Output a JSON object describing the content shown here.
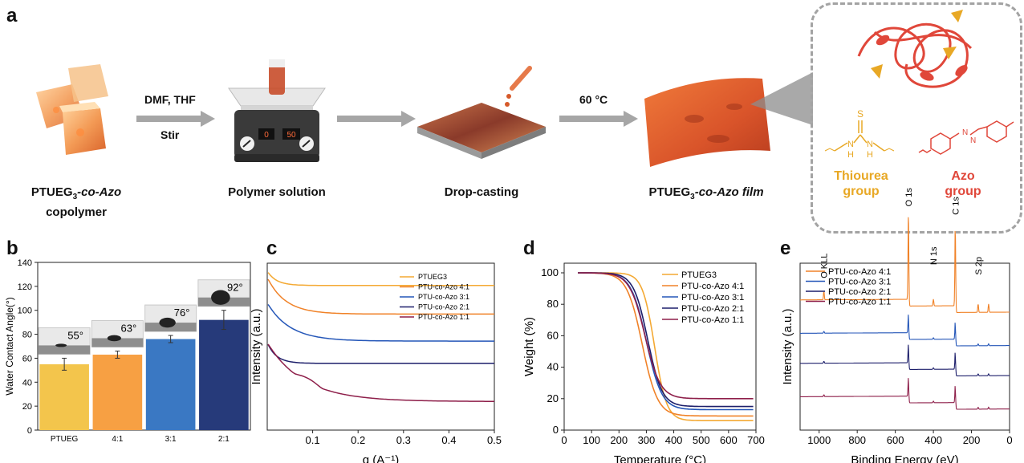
{
  "panel_a": {
    "letter": "a",
    "copolymer_label_line1": "PTUEG",
    "copolymer_label_sub": "3",
    "copolymer_label_line1b": "-co-Azo",
    "copolymer_label_line2": "copolymer",
    "step1_top": "DMF, THF",
    "step1_bottom": "Stir",
    "solution_label": "Polymer solution",
    "stirrer_display_left": "0",
    "stirrer_display_right": "50",
    "dropcast_label": "Drop-casting",
    "step3_top": "60 °C",
    "film_label_pre": "PTUEG",
    "film_label_sub": "3",
    "film_label_post": "-co-Azo film",
    "thiourea_label_line1": "Thiourea",
    "thiourea_label_line2": "group",
    "azo_label_line1": "Azo",
    "azo_label_line2": "group",
    "atom_S": "S",
    "atom_H": "H",
    "atom_N": "N",
    "colors": {
      "arrow": "#a6a6a6",
      "thiourea": "#e8a825",
      "azo": "#e0473a"
    }
  },
  "chart_data": [
    {
      "panel": "b",
      "type": "bar",
      "ylabel": "Water Contact Angle(°)",
      "categories": [
        "PTUEG",
        "4:1",
        "3:1",
        "2:1"
      ],
      "values": [
        55,
        63,
        76,
        92
      ],
      "errors": [
        5,
        3,
        3,
        8
      ],
      "angle_labels": [
        "55°",
        "63°",
        "76°",
        "92°"
      ],
      "colors": [
        "#f3c54c",
        "#f7a043",
        "#3a78c3",
        "#263a7a"
      ],
      "ylim": [
        0,
        140
      ],
      "yticks": [
        0,
        20,
        40,
        60,
        80,
        100,
        120,
        140
      ]
    },
    {
      "panel": "c",
      "type": "line",
      "xlabel": "q (A⁻¹)",
      "ylabel": "Intensity (a.u.)",
      "xlim": [
        0,
        0.5
      ],
      "xticks": [
        "0.1",
        "0.2",
        "0.3",
        "0.4",
        "0.5"
      ],
      "legend_position": "top-right",
      "series": [
        {
          "name": "PTUEG3",
          "color": "#f4a933",
          "offset": 91,
          "start": 100,
          "decay": 0.02
        },
        {
          "name": "PTU-co-Azo 4:1",
          "color": "#f08228",
          "offset": 73,
          "start": 96,
          "decay": 0.04
        },
        {
          "name": "PTU-co-Azo 3:1",
          "color": "#2456b8",
          "offset": 56,
          "start": 80,
          "decay": 0.05
        },
        {
          "name": "PTU-co-Azo 2:1",
          "color": "#1d1f6b",
          "offset": 42,
          "start": 55,
          "decay": 0.02
        },
        {
          "name": "PTU-co-Azo 1:1",
          "color": "#8e1f4a",
          "offset": 18,
          "start": 55,
          "decay": 0.08
        }
      ]
    },
    {
      "panel": "d",
      "type": "line",
      "xlabel": "Temperature (°C)",
      "ylabel": "Weight (%)",
      "xlim": [
        0,
        700
      ],
      "ylim": [
        0,
        100
      ],
      "xticks": [
        0,
        100,
        200,
        300,
        400,
        500,
        600,
        700
      ],
      "yticks": [
        0,
        20,
        40,
        60,
        80,
        100
      ],
      "legend_position": "top-right",
      "series": [
        {
          "name": "PTUEG3",
          "color": "#f4a933",
          "tmid": 330,
          "width": 22,
          "residue": 6
        },
        {
          "name": "PTU-co-Azo 4:1",
          "color": "#f08228",
          "tmid": 285,
          "width": 28,
          "residue": 9
        },
        {
          "name": "PTU-co-Azo 3:1",
          "color": "#2456b8",
          "tmid": 300,
          "width": 28,
          "residue": 13
        },
        {
          "name": "PTU-co-Azo 2:1",
          "color": "#1d1f6b",
          "tmid": 305,
          "width": 26,
          "residue": 15
        },
        {
          "name": "PTU-co-Azo 1:1",
          "color": "#8e1f4a",
          "tmid": 295,
          "width": 28,
          "residue": 20
        }
      ]
    },
    {
      "panel": "e",
      "type": "line",
      "xlabel": "Binding Energy (eV)",
      "ylabel": "Intensity (a.u.)",
      "xlim": [
        1100,
        0
      ],
      "xticks": [
        1000,
        800,
        600,
        400,
        200,
        0
      ],
      "legend_position": "top-left",
      "peak_labels": [
        "O KLL",
        "O 1s",
        "N 1s",
        "C 1s",
        "S 2p"
      ],
      "series": [
        {
          "name": "PTU-co-Azo 4:1",
          "color": "#f08228",
          "baseline": 0.78
        },
        {
          "name": "PTU-co-Azo 3:1",
          "color": "#2456b8",
          "baseline": 0.58
        },
        {
          "name": "PTU-co-Azo 2:1",
          "color": "#1d1f6b",
          "baseline": 0.4
        },
        {
          "name": "PTU-co-Azo 1:1",
          "color": "#8e1f4a",
          "baseline": 0.2
        }
      ]
    }
  ]
}
